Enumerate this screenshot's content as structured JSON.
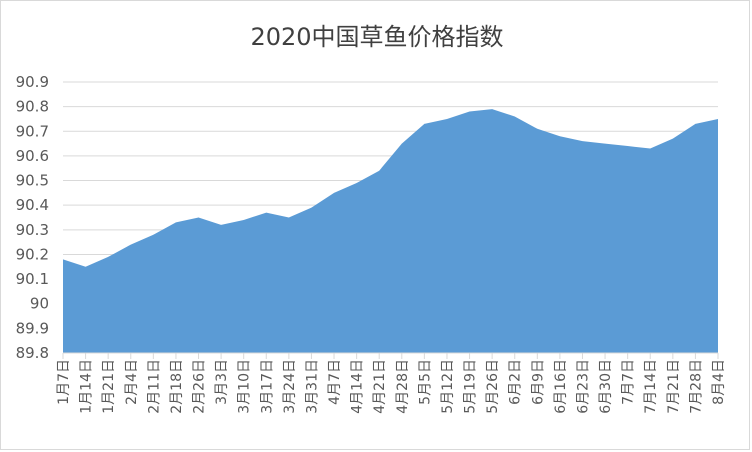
{
  "chart_data": {
    "type": "area",
    "title": "2020中国草鱼价格指数",
    "xlabel": "",
    "ylabel": "",
    "ylim": [
      89.8,
      90.9
    ],
    "yticks": [
      "90.9",
      "90.8",
      "90.7",
      "90.6",
      "90.5",
      "90.4",
      "90.3",
      "90.2",
      "90.1",
      "90",
      "89.9",
      "89.8"
    ],
    "categories": [
      "1月7日",
      "1月14日",
      "1月21日",
      "2月4日",
      "2月11日",
      "2月18日",
      "2月26日",
      "3月3日",
      "3月10日",
      "3月17日",
      "3月24日",
      "3月31日",
      "4月7日",
      "4月14日",
      "4月21日",
      "4月28日",
      "5月5日",
      "5月12日",
      "5月19日",
      "5月26日",
      "6月2日",
      "6月9日",
      "6月16日",
      "6月23日",
      "6月30日",
      "7月7日",
      "7月14日",
      "7月21日",
      "7月28日",
      "8月4日"
    ],
    "series": [
      {
        "values": [
          90.18,
          90.15,
          90.19,
          90.24,
          90.28,
          90.33,
          90.35,
          90.32,
          90.34,
          90.37,
          90.35,
          90.39,
          90.45,
          90.49,
          90.54,
          90.65,
          90.73,
          90.75,
          90.78,
          90.79,
          90.76,
          90.71,
          90.68,
          90.66,
          90.65,
          90.64,
          90.63,
          90.67,
          90.73,
          90.75
        ]
      }
    ],
    "grid": true,
    "legend": "none",
    "fill_color": "#5b9bd5",
    "grid_color": "#d9d9d9"
  }
}
